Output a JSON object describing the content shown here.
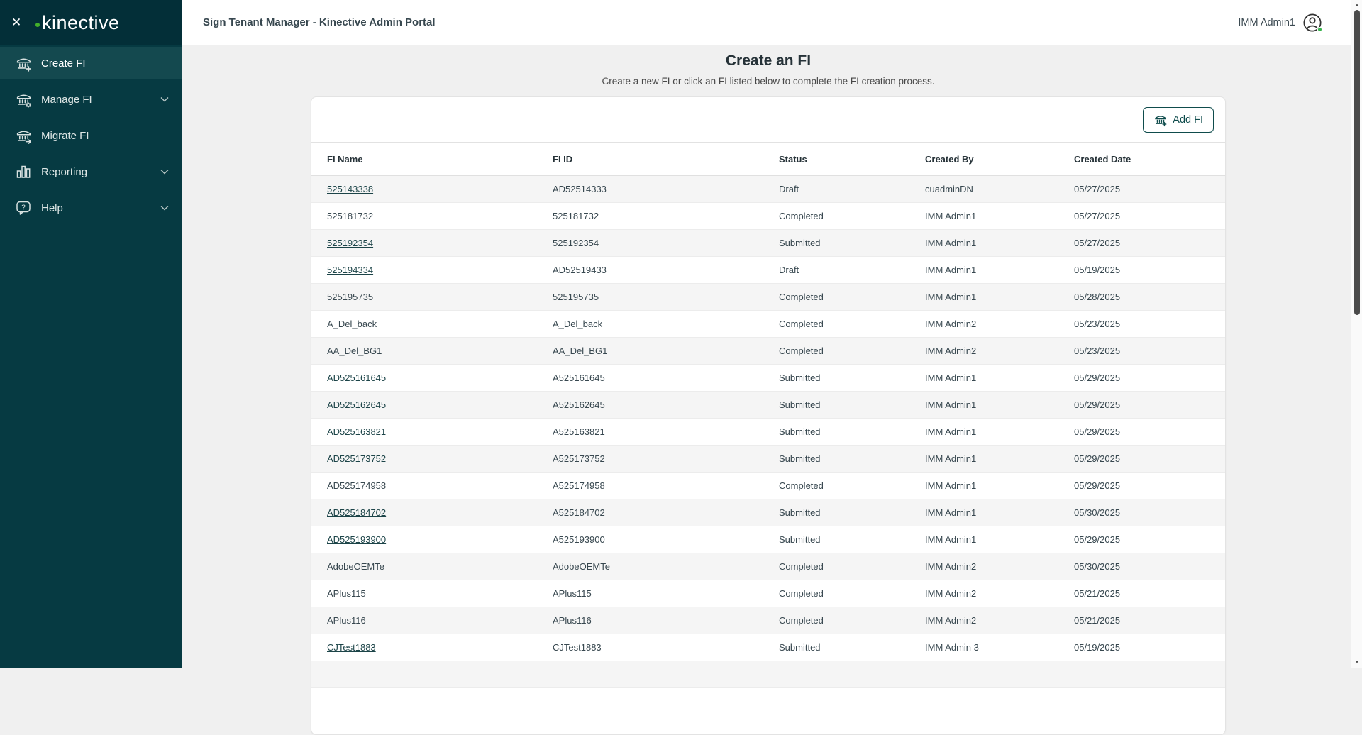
{
  "brand": {
    "logo_text": "kinective",
    "accent_green": "#43b02a"
  },
  "topbar": {
    "title": "Sign Tenant Manager - Kinective Admin Portal",
    "user_name": "IMM Admin1"
  },
  "sidebar": {
    "items": [
      {
        "label": "Create FI",
        "icon": "bank-plus-icon",
        "active": true,
        "expandable": false
      },
      {
        "label": "Manage FI",
        "icon": "bank-gear-icon",
        "active": false,
        "expandable": true
      },
      {
        "label": "Migrate FI",
        "icon": "bank-arrow-icon",
        "active": false,
        "expandable": false
      },
      {
        "label": "Reporting",
        "icon": "bar-chart-icon",
        "active": false,
        "expandable": true
      },
      {
        "label": "Help",
        "icon": "help-bubble-icon",
        "active": false,
        "expandable": true
      }
    ]
  },
  "page": {
    "title": "Create an FI",
    "subtitle": "Create a new FI or click an FI listed below to complete the FI creation process."
  },
  "toolbar": {
    "add_fi_label": "Add FI"
  },
  "table": {
    "columns": [
      "FI Name",
      "FI ID",
      "Status",
      "Created By",
      "Created Date"
    ],
    "rows": [
      {
        "fi_name": "525143338",
        "name_is_link": true,
        "fi_id": "AD52514333",
        "status": "Draft",
        "created_by": "cuadminDN",
        "created_date": "05/27/2025"
      },
      {
        "fi_name": "525181732",
        "name_is_link": false,
        "fi_id": "525181732",
        "status": "Completed",
        "created_by": "IMM Admin1",
        "created_date": "05/27/2025"
      },
      {
        "fi_name": "525192354",
        "name_is_link": true,
        "fi_id": "525192354",
        "status": "Submitted",
        "created_by": "IMM Admin1",
        "created_date": "05/27/2025"
      },
      {
        "fi_name": "525194334",
        "name_is_link": true,
        "fi_id": "AD52519433",
        "status": "Draft",
        "created_by": "IMM Admin1",
        "created_date": "05/19/2025"
      },
      {
        "fi_name": "525195735",
        "name_is_link": false,
        "fi_id": "525195735",
        "status": "Completed",
        "created_by": "IMM Admin1",
        "created_date": "05/28/2025"
      },
      {
        "fi_name": "A_Del_back",
        "name_is_link": false,
        "fi_id": "A_Del_back",
        "status": "Completed",
        "created_by": "IMM Admin2",
        "created_date": "05/23/2025"
      },
      {
        "fi_name": "AA_Del_BG1",
        "name_is_link": false,
        "fi_id": "AA_Del_BG1",
        "status": "Completed",
        "created_by": "IMM Admin2",
        "created_date": "05/23/2025"
      },
      {
        "fi_name": "AD525161645",
        "name_is_link": true,
        "fi_id": "A525161645",
        "status": "Submitted",
        "created_by": "IMM Admin1",
        "created_date": "05/29/2025"
      },
      {
        "fi_name": "AD525162645",
        "name_is_link": true,
        "fi_id": "A525162645",
        "status": "Submitted",
        "created_by": "IMM Admin1",
        "created_date": "05/29/2025"
      },
      {
        "fi_name": "AD525163821",
        "name_is_link": true,
        "fi_id": "A525163821",
        "status": "Submitted",
        "created_by": "IMM Admin1",
        "created_date": "05/29/2025"
      },
      {
        "fi_name": "AD525173752",
        "name_is_link": true,
        "fi_id": "A525173752",
        "status": "Submitted",
        "created_by": "IMM Admin1",
        "created_date": "05/29/2025"
      },
      {
        "fi_name": "AD525174958",
        "name_is_link": false,
        "fi_id": "A525174958",
        "status": "Completed",
        "created_by": "IMM Admin1",
        "created_date": "05/29/2025"
      },
      {
        "fi_name": "AD525184702",
        "name_is_link": true,
        "fi_id": "A525184702",
        "status": "Submitted",
        "created_by": "IMM Admin1",
        "created_date": "05/30/2025"
      },
      {
        "fi_name": "AD525193900",
        "name_is_link": true,
        "fi_id": "A525193900",
        "status": "Submitted",
        "created_by": "IMM Admin1",
        "created_date": "05/29/2025"
      },
      {
        "fi_name": "AdobeOEMTe",
        "name_is_link": false,
        "fi_id": "AdobeOEMTe",
        "status": "Completed",
        "created_by": "IMM Admin2",
        "created_date": "05/30/2025"
      },
      {
        "fi_name": "APlus115",
        "name_is_link": false,
        "fi_id": "APlus115",
        "status": "Completed",
        "created_by": "IMM Admin2",
        "created_date": "05/21/2025"
      },
      {
        "fi_name": "APlus116",
        "name_is_link": false,
        "fi_id": "APlus116",
        "status": "Completed",
        "created_by": "IMM Admin2",
        "created_date": "05/21/2025"
      },
      {
        "fi_name": "CJTest1883",
        "name_is_link": true,
        "fi_id": "CJTest1883",
        "status": "Submitted",
        "created_by": "IMM Admin 3",
        "created_date": "05/19/2025"
      }
    ]
  },
  "colors": {
    "sidebar_bg": "#063a42",
    "sidebar_header_bg": "#032f38",
    "sidebar_active_bg": "#14494f",
    "teal": "#0f4c4c",
    "link": "#1c4448",
    "row_alt": "#f5f5f5",
    "status_green": "#36b24a"
  }
}
